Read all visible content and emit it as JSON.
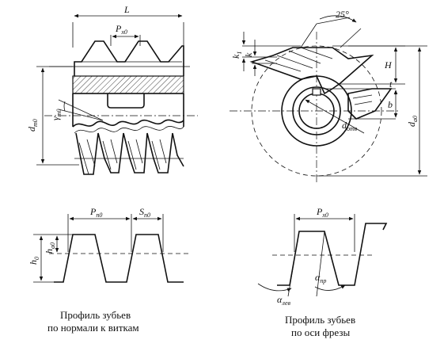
{
  "diagram": {
    "hob_side_view": {
      "length": "L",
      "axial_pitch": "P",
      "axial_pitch_sub": "x0",
      "pitch_diameter": "d",
      "pitch_diameter_sub": "m0",
      "lead_angle": "γ",
      "lead_angle_sub": "m0"
    },
    "hob_end_view": {
      "rake_angle": "25°",
      "relief_k1": "k",
      "relief_k1_sub": "1",
      "relief_k": "k",
      "height": "H",
      "keyway_depth": "t",
      "keyway_width": "b",
      "bore": "d",
      "bore_sub": "отв",
      "outer_diameter": "d",
      "outer_diameter_sub": "a0"
    },
    "normal_profile": {
      "pitch": "P",
      "pitch_sub": "n0",
      "thickness": "S",
      "thickness_sub": "n0",
      "tooth_height": "h",
      "tooth_height_sub": "0",
      "addendum": "h",
      "addendum_sub": "a0",
      "caption_line1": "Профиль зубьев",
      "caption_line2": "по нормали к виткам"
    },
    "axial_profile": {
      "pitch": "P",
      "pitch_sub": "x0",
      "left_angle": "α",
      "left_angle_sub": "лев",
      "right_angle": "α",
      "right_angle_sub": "пр",
      "caption_line1": "Профиль зубьев",
      "caption_line2": "по оси фрезы"
    }
  }
}
